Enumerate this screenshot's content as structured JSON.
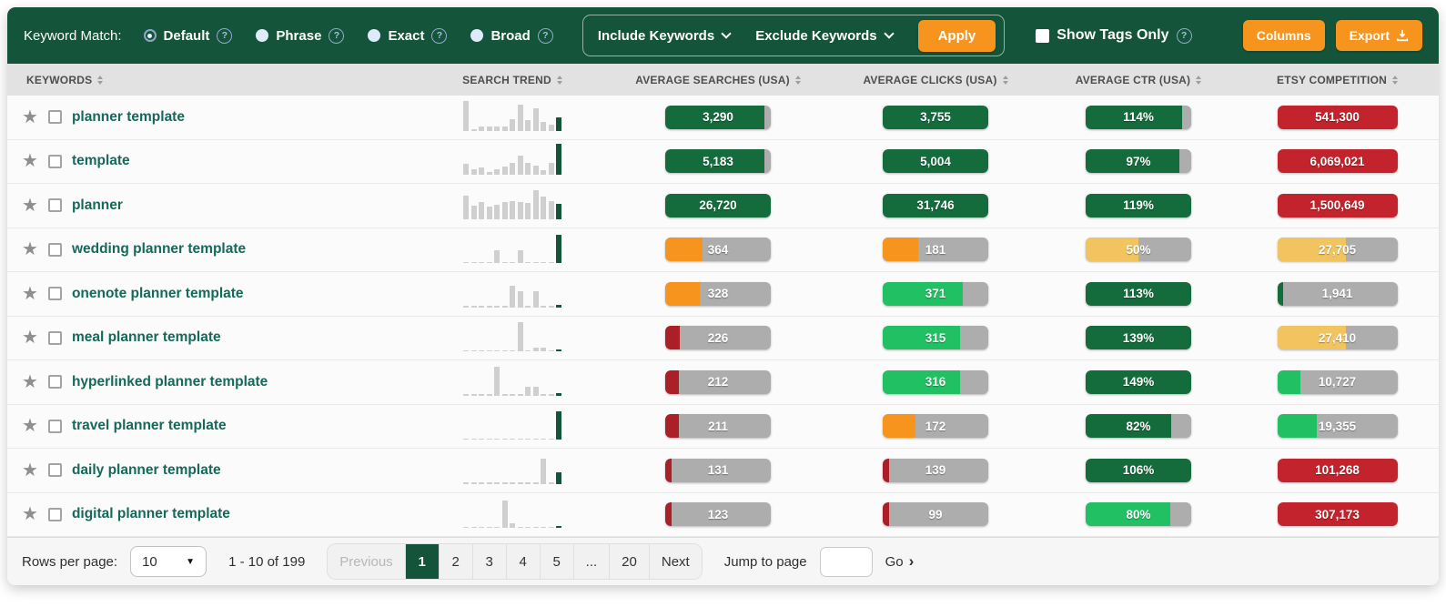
{
  "colors": {
    "green_dark": "#146C3C",
    "green_bright": "#21C163",
    "orange": "#F7941E",
    "amber": "#F2C45F",
    "red": "#C2232C",
    "red_dark": "#AB1F27",
    "header_green": "#14543A"
  },
  "icons": {
    "star": "★",
    "help": "?",
    "select_caret": "▼",
    "go_chevron": "›"
  },
  "toolbar": {
    "keyword_match_label": "Keyword Match:",
    "match_options": [
      {
        "label": "Default",
        "selected": true
      },
      {
        "label": "Phrase",
        "selected": false
      },
      {
        "label": "Exact",
        "selected": false
      },
      {
        "label": "Broad",
        "selected": false
      }
    ],
    "include_keywords_label": "Include Keywords",
    "exclude_keywords_label": "Exclude Keywords",
    "apply_label": "Apply",
    "show_tags_only_label": "Show Tags Only",
    "columns_label": "Columns",
    "export_label": "Export"
  },
  "table": {
    "headers": [
      "KEYWORDS",
      "SEARCH TREND",
      "AVERAGE SEARCHES (USA)",
      "AVERAGE CLICKS (USA)",
      "AVERAGE CTR (USA)",
      "ETSY COMPETITION"
    ],
    "rows": [
      {
        "keyword": "planner template",
        "trend": {
          "bars": [
            90,
            5,
            12,
            12,
            12,
            14,
            35,
            80,
            32,
            70,
            28,
            18
          ],
          "last": 40
        },
        "searches": {
          "value": "3,290",
          "color": "green_dark",
          "fill": 94
        },
        "clicks": {
          "value": "3,755",
          "color": "green_dark",
          "fill": 100
        },
        "ctr": {
          "value": "114%",
          "color": "green_dark",
          "fill": 91
        },
        "competition": {
          "value": "541,300",
          "color": "red",
          "fill": 100
        }
      },
      {
        "keyword": "template",
        "trend": {
          "bars": [
            35,
            18,
            22,
            8,
            18,
            25,
            38,
            58,
            38,
            28,
            16,
            38
          ],
          "last": 95
        },
        "searches": {
          "value": "5,183",
          "color": "green_dark",
          "fill": 94
        },
        "clicks": {
          "value": "5,004",
          "color": "green_dark",
          "fill": 100
        },
        "ctr": {
          "value": "97%",
          "color": "green_dark",
          "fill": 89
        },
        "competition": {
          "value": "6,069,021",
          "color": "red",
          "fill": 100
        }
      },
      {
        "keyword": "planner",
        "trend": {
          "bars": [
            72,
            42,
            52,
            38,
            45,
            52,
            55,
            52,
            48,
            88,
            68,
            55
          ],
          "last": 46
        },
        "searches": {
          "value": "26,720",
          "color": "green_dark",
          "fill": 100
        },
        "clicks": {
          "value": "31,746",
          "color": "green_dark",
          "fill": 100
        },
        "ctr": {
          "value": "119%",
          "color": "green_dark",
          "fill": 100
        },
        "competition": {
          "value": "1,500,649",
          "color": "red",
          "fill": 100
        }
      },
      {
        "keyword": "wedding planner template",
        "trend": {
          "bars": [
            4,
            4,
            4,
            4,
            40,
            4,
            4,
            40,
            4,
            4,
            4,
            4
          ],
          "last": 88
        },
        "searches": {
          "value": "364",
          "color": "orange",
          "fill": 35
        },
        "clicks": {
          "value": "181",
          "color": "orange",
          "fill": 34
        },
        "ctr": {
          "value": "50%",
          "color": "amber",
          "fill": 50
        },
        "competition": {
          "value": "27,705",
          "color": "amber",
          "fill": 57
        }
      },
      {
        "keyword": "onenote planner template",
        "trend": {
          "bars": [
            4,
            4,
            4,
            4,
            4,
            4,
            65,
            50,
            4,
            50,
            4,
            4
          ],
          "last": 8
        },
        "searches": {
          "value": "328",
          "color": "orange",
          "fill": 33
        },
        "clicks": {
          "value": "371",
          "color": "green_bright",
          "fill": 76
        },
        "ctr": {
          "value": "113%",
          "color": "green_dark",
          "fill": 100
        },
        "competition": {
          "value": "1,941",
          "color": "green_dark",
          "fill": 5
        }
      },
      {
        "keyword": "meal planner template",
        "trend": {
          "bars": [
            4,
            4,
            4,
            4,
            4,
            4,
            4,
            90,
            4,
            12,
            12,
            4
          ],
          "last": 6
        },
        "searches": {
          "value": "226",
          "color": "red_dark",
          "fill": 14
        },
        "clicks": {
          "value": "315",
          "color": "green_bright",
          "fill": 73
        },
        "ctr": {
          "value": "139%",
          "color": "green_dark",
          "fill": 100
        },
        "competition": {
          "value": "27,410",
          "color": "amber",
          "fill": 57
        }
      },
      {
        "keyword": "hyperlinked planner template",
        "trend": {
          "bars": [
            4,
            4,
            4,
            4,
            88,
            4,
            4,
            4,
            26,
            26,
            4,
            4
          ],
          "last": 8
        },
        "searches": {
          "value": "212",
          "color": "red_dark",
          "fill": 13
        },
        "clicks": {
          "value": "316",
          "color": "green_bright",
          "fill": 73
        },
        "ctr": {
          "value": "149%",
          "color": "green_dark",
          "fill": 100
        },
        "competition": {
          "value": "10,727",
          "color": "green_bright",
          "fill": 19
        }
      },
      {
        "keyword": "travel planner template",
        "trend": {
          "bars": [
            4,
            4,
            4,
            4,
            4,
            4,
            4,
            4,
            4,
            4,
            4,
            4
          ],
          "last": 88
        },
        "searches": {
          "value": "211",
          "color": "red_dark",
          "fill": 13
        },
        "clicks": {
          "value": "172",
          "color": "orange",
          "fill": 31
        },
        "ctr": {
          "value": "82%",
          "color": "green_dark",
          "fill": 81
        },
        "competition": {
          "value": "19,355",
          "color": "green_bright",
          "fill": 33
        }
      },
      {
        "keyword": "daily planner template",
        "trend": {
          "bars": [
            4,
            4,
            4,
            4,
            4,
            4,
            4,
            4,
            4,
            4,
            78,
            4
          ],
          "last": 36
        },
        "searches": {
          "value": "131",
          "color": "red_dark",
          "fill": 6
        },
        "clicks": {
          "value": "139",
          "color": "red_dark",
          "fill": 6
        },
        "ctr": {
          "value": "106%",
          "color": "green_dark",
          "fill": 100
        },
        "competition": {
          "value": "101,268",
          "color": "red",
          "fill": 100
        }
      },
      {
        "keyword": "digital planner template",
        "trend": {
          "bars": [
            4,
            4,
            4,
            4,
            4,
            85,
            15,
            4,
            4,
            4,
            4,
            4
          ],
          "last": 6
        },
        "searches": {
          "value": "123",
          "color": "red_dark",
          "fill": 6
        },
        "clicks": {
          "value": "99",
          "color": "red_dark",
          "fill": 6
        },
        "ctr": {
          "value": "80%",
          "color": "green_bright",
          "fill": 80
        },
        "competition": {
          "value": "307,173",
          "color": "red",
          "fill": 100
        }
      }
    ]
  },
  "footer": {
    "rows_per_page_label": "Rows per page:",
    "rows_per_page_value": "10",
    "range_text": "1 - 10 of 199",
    "pages": [
      "Previous",
      "1",
      "2",
      "3",
      "4",
      "5",
      "...",
      "20",
      "Next"
    ],
    "active_page": "1",
    "jump_to_page_label": "Jump to page",
    "jump_value": "",
    "go_label": "Go"
  }
}
